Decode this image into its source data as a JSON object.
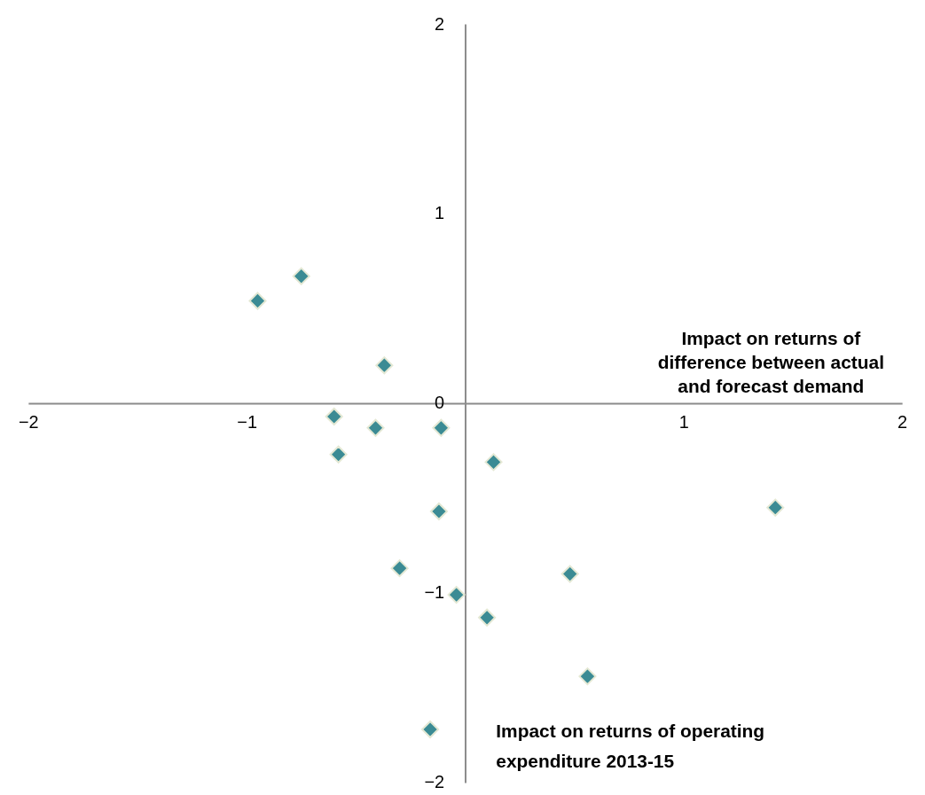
{
  "chart_data": {
    "type": "scatter",
    "xlabel": "Impact on returns of difference between actual and forecast demand",
    "ylabel": "Impact on returns of operating expenditure 2013-15",
    "series": [
      {
        "color": "#3b8b94",
        "x": [
          -0.95,
          -0.75,
          -0.37,
          -0.6,
          -0.41,
          -0.11,
          -0.58,
          0.13,
          -0.12,
          1.42,
          -0.3,
          0.48,
          -0.04,
          0.1,
          0.56,
          -0.16
        ],
        "values": [
          0.54,
          0.67,
          0.2,
          -0.07,
          -0.13,
          -0.13,
          -0.27,
          -0.31,
          -0.57,
          -0.55,
          -0.87,
          -0.9,
          -1.01,
          -1.13,
          -1.44,
          -1.72
        ]
      }
    ],
    "xlim": [
      -2,
      2
    ],
    "ylim": [
      -2,
      2
    ],
    "xticks": [
      -2,
      -1,
      {
        "value": 0,
        "label": null
      },
      1,
      2
    ],
    "yticks": [
      -2,
      -1,
      0,
      1,
      2
    ],
    "marker": "diamond",
    "grid": false
  }
}
